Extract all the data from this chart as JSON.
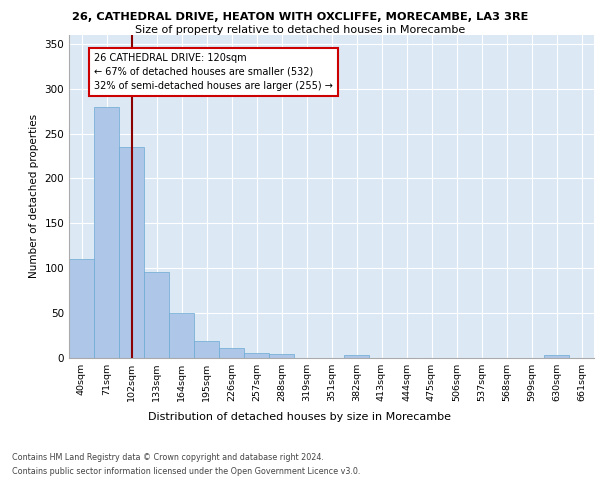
{
  "title1": "26, CATHEDRAL DRIVE, HEATON WITH OXCLIFFE, MORECAMBE, LA3 3RE",
  "title2": "Size of property relative to detached houses in Morecambe",
  "xlabel": "Distribution of detached houses by size in Morecambe",
  "ylabel": "Number of detached properties",
  "bar_labels": [
    "40sqm",
    "71sqm",
    "102sqm",
    "133sqm",
    "164sqm",
    "195sqm",
    "226sqm",
    "257sqm",
    "288sqm",
    "319sqm",
    "351sqm",
    "382sqm",
    "413sqm",
    "444sqm",
    "475sqm",
    "506sqm",
    "537sqm",
    "568sqm",
    "599sqm",
    "630sqm",
    "661sqm"
  ],
  "bar_values": [
    110,
    280,
    235,
    95,
    50,
    18,
    11,
    5,
    4,
    0,
    0,
    3,
    0,
    0,
    0,
    0,
    0,
    0,
    0,
    3,
    0
  ],
  "bar_color": "#aec6e8",
  "bar_edgecolor": "#6aaad4",
  "vline_x": 2,
  "vline_color": "#8b0000",
  "annotation_text": "26 CATHEDRAL DRIVE: 120sqm\n← 67% of detached houses are smaller (532)\n32% of semi-detached houses are larger (255) →",
  "annotation_box_color": "#ffffff",
  "annotation_box_edgecolor": "#cc0000",
  "ylim": [
    0,
    360
  ],
  "yticks": [
    0,
    50,
    100,
    150,
    200,
    250,
    300,
    350
  ],
  "background_color": "#dce9f5",
  "footer1": "Contains HM Land Registry data © Crown copyright and database right 2024.",
  "footer2": "Contains public sector information licensed under the Open Government Licence v3.0."
}
